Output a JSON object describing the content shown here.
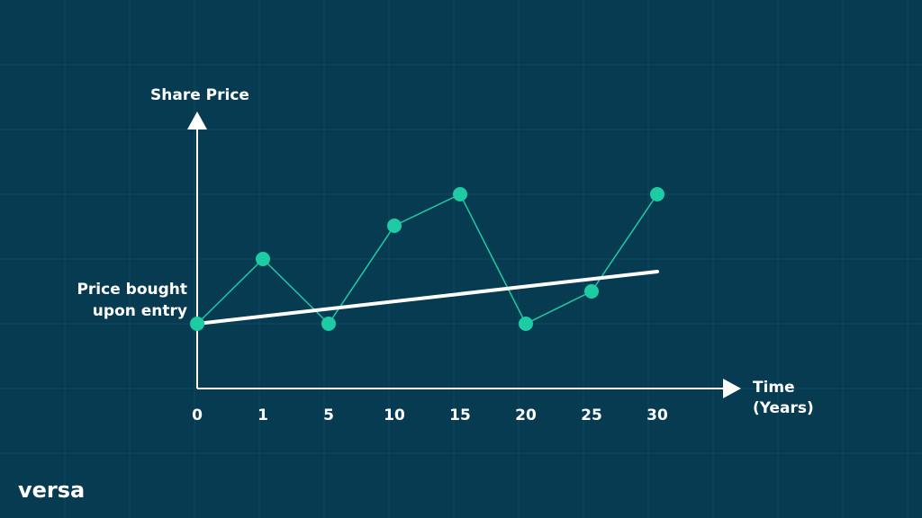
{
  "chart_data": {
    "type": "line",
    "y_axis_label": "Share Price",
    "x_axis_label": [
      "Time",
      "(Years)"
    ],
    "annotation": [
      "Price bought",
      "upon entry"
    ],
    "categories": [
      "0",
      "1",
      "5",
      "10",
      "15",
      "20",
      "25",
      "30"
    ],
    "series": [
      {
        "color": "#1ecca3",
        "values": [
          72,
          144,
          72,
          181,
          216,
          72,
          108,
          216
        ]
      }
    ],
    "trend": {
      "color": "#ffffff",
      "values": [
        72,
        130
      ]
    },
    "ylim": [
      0,
      300
    ]
  },
  "logo": "versa"
}
